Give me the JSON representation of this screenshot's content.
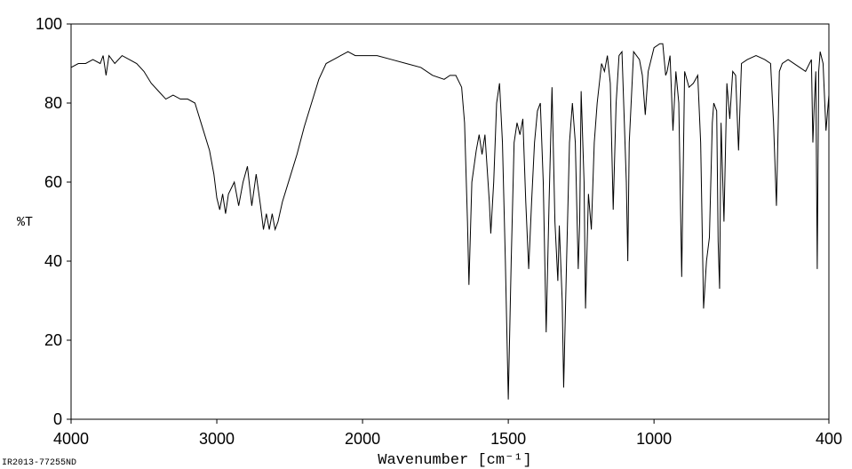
{
  "chart_data": {
    "type": "line",
    "y_label": "%T",
    "x_label": "Wavenumber [cm⁻¹]",
    "annotation": "IR2013-77255ND",
    "xlim": [
      4000,
      400
    ],
    "ylim": [
      0,
      100
    ],
    "x_break": 2000,
    "x_break_zoom": 2,
    "xticks": [
      4000,
      3000,
      2000,
      1500,
      1000,
      400
    ],
    "yticks": [
      0,
      20,
      40,
      60,
      80,
      100
    ],
    "color": "#000000",
    "x": [
      4000,
      3950,
      3900,
      3850,
      3800,
      3780,
      3760,
      3740,
      3700,
      3650,
      3600,
      3550,
      3500,
      3450,
      3400,
      3350,
      3300,
      3250,
      3200,
      3150,
      3100,
      3050,
      3020,
      3000,
      2980,
      2960,
      2940,
      2920,
      2880,
      2850,
      2820,
      2790,
      2760,
      2730,
      2700,
      2680,
      2660,
      2640,
      2620,
      2600,
      2580,
      2550,
      2500,
      2450,
      2400,
      2350,
      2300,
      2250,
      2200,
      2150,
      2100,
      2050,
      2000,
      1950,
      1900,
      1850,
      1800,
      1760,
      1720,
      1700,
      1680,
      1660,
      1650,
      1640,
      1635,
      1625,
      1610,
      1600,
      1590,
      1580,
      1565,
      1560,
      1550,
      1540,
      1530,
      1520,
      1510,
      1500,
      1490,
      1480,
      1470,
      1460,
      1450,
      1440,
      1430,
      1420,
      1410,
      1400,
      1390,
      1380,
      1370,
      1360,
      1350,
      1340,
      1330,
      1325,
      1315,
      1310,
      1300,
      1290,
      1280,
      1270,
      1260,
      1255,
      1250,
      1240,
      1235,
      1225,
      1215,
      1205,
      1195,
      1180,
      1170,
      1160,
      1150,
      1140,
      1130,
      1120,
      1110,
      1095,
      1090,
      1085,
      1070,
      1050,
      1040,
      1030,
      1020,
      1000,
      980,
      970,
      960,
      955,
      945,
      935,
      925,
      915,
      905,
      895,
      880,
      865,
      850,
      840,
      830,
      820,
      810,
      800,
      795,
      785,
      780,
      775,
      770,
      760,
      750,
      740,
      730,
      720,
      710,
      700,
      680,
      650,
      620,
      600,
      590,
      580,
      570,
      560,
      540,
      500,
      480,
      460,
      455,
      450,
      445,
      440,
      435,
      430,
      420,
      410,
      400
    ],
    "values": [
      89,
      90,
      90,
      91,
      90,
      92,
      87,
      92,
      90,
      92,
      91,
      90,
      88,
      85,
      83,
      81,
      82,
      81,
      81,
      80,
      74,
      68,
      62,
      56,
      53,
      57,
      52,
      57,
      60,
      54,
      60,
      64,
      54,
      62,
      54,
      48,
      52,
      48,
      52,
      48,
      50,
      55,
      61,
      67,
      74,
      80,
      86,
      90,
      91,
      92,
      93,
      92,
      92,
      92,
      91,
      90,
      89,
      87,
      86,
      87,
      87,
      84,
      75,
      50,
      34,
      60,
      68,
      72,
      67,
      72,
      55,
      47,
      60,
      80,
      85,
      70,
      40,
      5,
      40,
      70,
      75,
      72,
      76,
      55,
      38,
      55,
      70,
      78,
      80,
      60,
      22,
      55,
      84,
      50,
      35,
      49,
      30,
      8,
      40,
      70,
      80,
      70,
      38,
      50,
      83,
      60,
      28,
      57,
      48,
      70,
      80,
      90,
      88,
      92,
      85,
      53,
      80,
      92,
      93,
      60,
      40,
      70,
      93,
      91,
      87,
      77,
      88,
      94,
      95,
      95,
      87,
      88,
      92,
      73,
      88,
      80,
      36,
      88,
      84,
      85,
      87,
      70,
      28,
      40,
      46,
      75,
      80,
      78,
      45,
      33,
      75,
      50,
      85,
      76,
      88,
      87,
      68,
      90,
      91,
      92,
      91,
      90,
      75,
      54,
      88,
      90,
      91,
      89,
      88,
      91,
      70,
      80,
      88,
      38,
      88,
      93,
      90,
      73,
      82
    ]
  }
}
